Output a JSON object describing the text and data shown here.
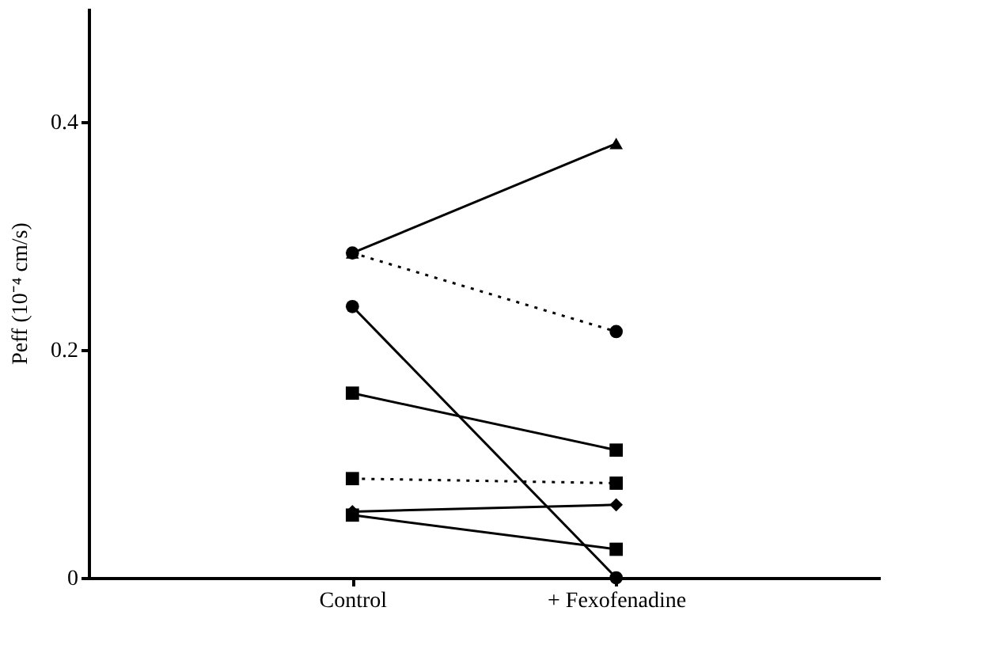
{
  "chart_data": {
    "type": "line",
    "ylabel": "Peff (10⁻⁴ cm/s)",
    "categories": [
      "Control",
      "+ Fexofenadine"
    ],
    "ylim": [
      0,
      0.5
    ],
    "yticks": [
      0,
      0.2,
      0.4
    ],
    "grid": false,
    "series": [
      {
        "color": "#000000",
        "values": [
          0.285,
          0.381
        ],
        "marker": "triangle",
        "line_style": "solid"
      },
      {
        "color": "#000000",
        "values": [
          0.285,
          0.216
        ],
        "marker": "circle",
        "line_style": "dotted"
      },
      {
        "color": "#000000",
        "values": [
          0.238,
          0.0
        ],
        "marker": "circle",
        "line_style": "solid"
      },
      {
        "color": "#000000",
        "values": [
          0.162,
          0.112
        ],
        "marker": "square",
        "line_style": "solid"
      },
      {
        "color": "#000000",
        "values": [
          0.087,
          0.083
        ],
        "marker": "square",
        "line_style": "dotted"
      },
      {
        "color": "#000000",
        "values": [
          0.058,
          0.064
        ],
        "marker": "diamond",
        "line_style": "solid"
      },
      {
        "color": "#000000",
        "values": [
          0.055,
          0.025
        ],
        "marker": "square",
        "line_style": "solid"
      }
    ]
  }
}
